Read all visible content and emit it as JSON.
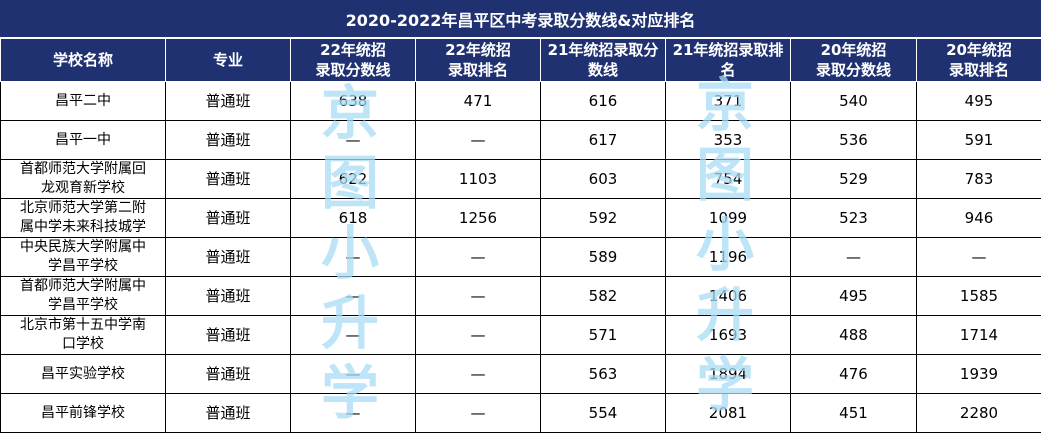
{
  "title": "2020-2022年昌平区中考录取分数线&对应排名",
  "headers": [
    [
      "学校名称"
    ],
    [
      "专业"
    ],
    [
      "22年统招",
      "录取分数线"
    ],
    [
      "22年统招",
      "录取排名"
    ],
    [
      "21年统招录取分",
      "数线"
    ],
    [
      "21年统招录取排",
      "名"
    ],
    [
      "20年统招",
      "录取分数线"
    ],
    [
      "20年统招",
      "录取排名"
    ]
  ],
  "rows": [
    {
      "school": [
        "昌平二中"
      ],
      "major": "普通班",
      "s22": "638",
      "r22": "471",
      "s21": "616",
      "r21": "371",
      "s20": "540",
      "r20": "495"
    },
    {
      "school": [
        "昌平一中"
      ],
      "major": "普通班",
      "s22": "—",
      "r22": "—",
      "s21": "617",
      "r21": "353",
      "s20": "536",
      "r20": "591"
    },
    {
      "school": [
        "首都师范大学附属回",
        "龙观育新学校"
      ],
      "major": "普通班",
      "s22": "622",
      "r22": "1103",
      "s21": "603",
      "r21": "754",
      "s20": "529",
      "r20": "783"
    },
    {
      "school": [
        "北京师范大学第二附",
        "属中学未来科技城学"
      ],
      "major": "普通班",
      "s22": "618",
      "r22": "1256",
      "s21": "592",
      "r21": "1099",
      "s20": "523",
      "r20": "946"
    },
    {
      "school": [
        "中央民族大学附属中",
        "学昌平学校"
      ],
      "major": "普通班",
      "s22": "—",
      "r22": "—",
      "s21": "589",
      "r21": "1196",
      "s20": "—",
      "r20": "—"
    },
    {
      "school": [
        "首都师范大学附属中",
        "学昌平学校"
      ],
      "major": "普通班",
      "s22": "—",
      "r22": "—",
      "s21": "582",
      "r21": "1406",
      "s20": "495",
      "r20": "1585"
    },
    {
      "school": [
        "北京市第十五中学南",
        "口学校"
      ],
      "major": "普通班",
      "s22": "—",
      "r22": "—",
      "s21": "571",
      "r21": "1693",
      "s20": "488",
      "r20": "1714"
    },
    {
      "school": [
        "昌平实验学校"
      ],
      "major": "普通班",
      "s22": "—",
      "r22": "—",
      "s21": "563",
      "r21": "1894",
      "s20": "476",
      "r20": "1939"
    },
    {
      "school": [
        "昌平前锋学校"
      ],
      "major": "普通班",
      "s22": "—",
      "r22": "—",
      "s21": "554",
      "r21": "2081",
      "s20": "451",
      "r20": "2280"
    }
  ],
  "watermark": [
    "京",
    "图",
    "小",
    "升",
    "学"
  ],
  "colors": {
    "header_bg": "#1f3171",
    "header_text": "#ffffff",
    "watermark": "#a9dcf6",
    "grid": "#000000"
  }
}
